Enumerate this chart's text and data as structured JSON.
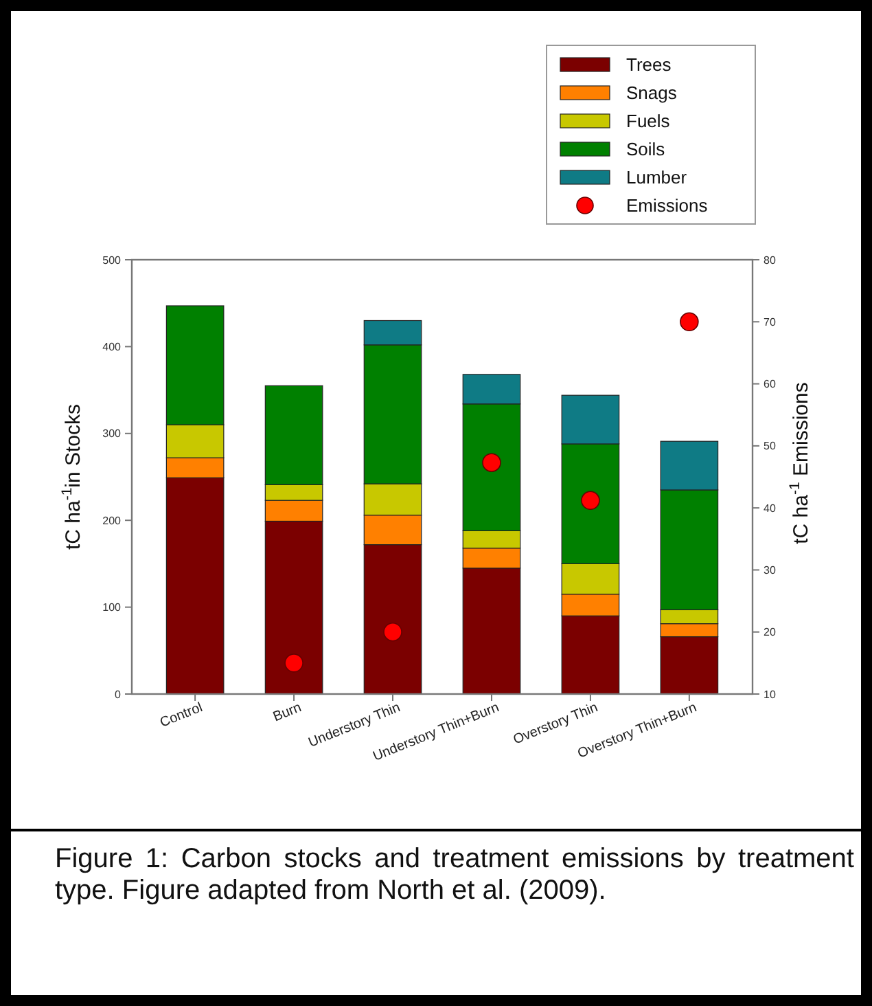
{
  "chart_data": {
    "type": "bar",
    "stacked": true,
    "ylabel": "tC ha$^{-1}$in Stocks",
    "y2label": "tC ha$^{-1}$ Emissions",
    "categories": [
      "Control",
      "Burn",
      "Understory Thin",
      "Understory Thin+Burn",
      "Overstory Thin",
      "Overstory Thin+Burn"
    ],
    "series": [
      {
        "name": "Trees",
        "color": "#7b0000",
        "values": [
          249,
          199,
          172,
          145,
          90,
          66
        ]
      },
      {
        "name": "Snags",
        "color": "#ff8000",
        "values": [
          23,
          24,
          34,
          23,
          25,
          15
        ]
      },
      {
        "name": "Fuels",
        "color": "#c8c800",
        "values": [
          38,
          18,
          36,
          20,
          35,
          16
        ]
      },
      {
        "name": "Soils",
        "color": "#008000",
        "values": [
          137,
          114,
          160,
          146,
          138,
          138
        ]
      },
      {
        "name": "Lumber",
        "color": "#0f7b85",
        "values": [
          null,
          null,
          28,
          34,
          56,
          56
        ]
      },
      {
        "name": "Emissions",
        "type": "scatter",
        "axis": "y2",
        "color": "#ff0000",
        "x": [
          "Control",
          "Burn",
          "Understory Thin",
          "Understory Thin+Burn",
          "Overstory Thin",
          "Overstory Thin+Burn"
        ],
        "values": [
          null,
          15,
          20,
          47.3,
          41.2,
          70
        ]
      }
    ],
    "ylim": [
      0,
      500
    ],
    "yticks": [
      0,
      100,
      200,
      300,
      400,
      500
    ],
    "y2lim": [
      10,
      80
    ],
    "y2ticks": [
      10,
      20,
      30,
      40,
      50,
      60,
      70,
      80
    ],
    "grid": false,
    "legend": "top right",
    "marker": "circle",
    "annotations": [
      "Figure 1: Carbon stocks and treatment emissions by treatment type. Figure adapted from North et al. (2009)."
    ]
  }
}
